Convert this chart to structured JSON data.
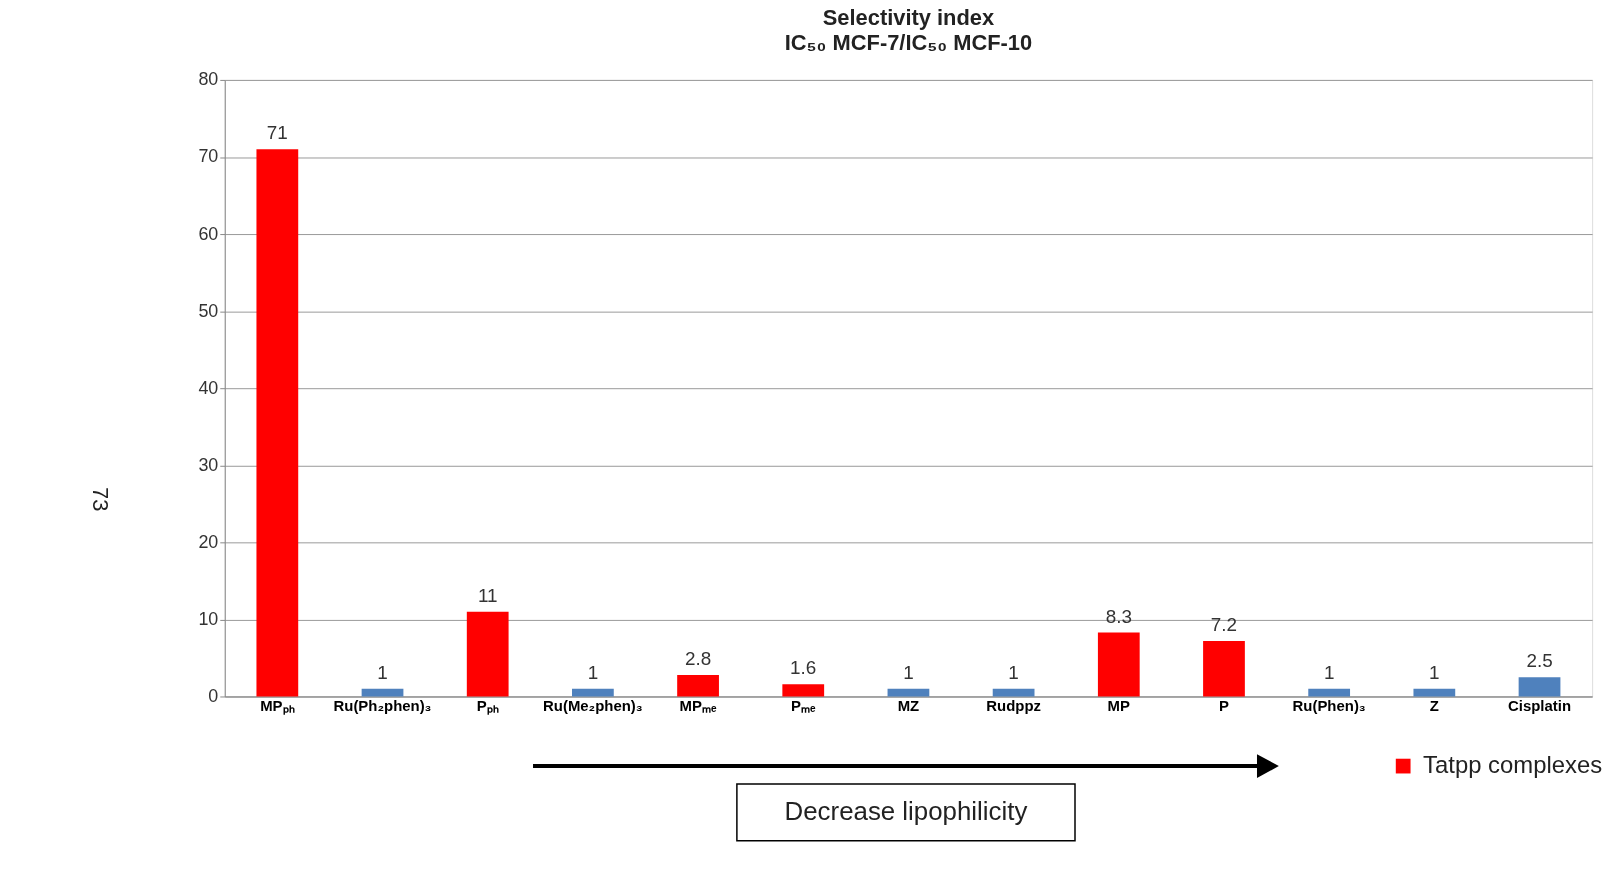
{
  "chart_data": {
    "type": "bar",
    "title": "Selectivity index",
    "subtitle": "IC₅₀ MCF-7/IC₅₀ MCF-10",
    "categories": [
      "MPₚₕ",
      "Ru(Ph₂phen)₃",
      "Pₚₕ",
      "Ru(Me₂phen)₃",
      "MPₘₑ",
      "Pₘₑ",
      "MZ",
      "Rudppz",
      "MP",
      "P",
      "Ru(Phen)₃",
      "Z",
      "Cisplatin"
    ],
    "series": [
      {
        "name": "Tatpp complexes",
        "color": "#ff0000",
        "values": [
          71,
          null,
          11,
          null,
          2.8,
          1.6,
          null,
          null,
          8.3,
          7.2,
          null,
          null,
          null
        ]
      },
      {
        "color": "#4f81bd",
        "values": [
          null,
          1,
          null,
          1,
          null,
          null,
          1,
          1,
          null,
          null,
          1,
          1,
          2.5
        ]
      }
    ],
    "ylim": [
      0,
      80
    ],
    "yticks": [
      0,
      10,
      20,
      30,
      40,
      50,
      60,
      70,
      80
    ],
    "grid": "y",
    "data_labels": true,
    "legend": "bottom right",
    "annotations": [
      "Decrease lipophilicity",
      "73"
    ]
  }
}
